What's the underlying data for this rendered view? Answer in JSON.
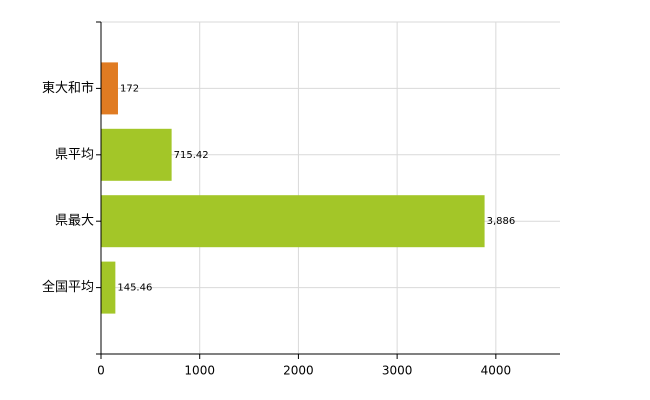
{
  "chart_data": {
    "type": "bar",
    "orientation": "horizontal",
    "categories": [
      "東大和市",
      "県平均",
      "県最大",
      "全国平均"
    ],
    "values": [
      172,
      715.42,
      3886,
      145.46
    ],
    "value_labels": [
      "172",
      "715.42",
      "3,886",
      "145.46"
    ],
    "colors": [
      "#e07b22",
      "#a3c628",
      "#a3c628",
      "#a3c628"
    ],
    "xlim": [
      0,
      4650
    ],
    "xticks": [
      0,
      1000,
      2000,
      3000,
      4000
    ],
    "grid": true
  }
}
